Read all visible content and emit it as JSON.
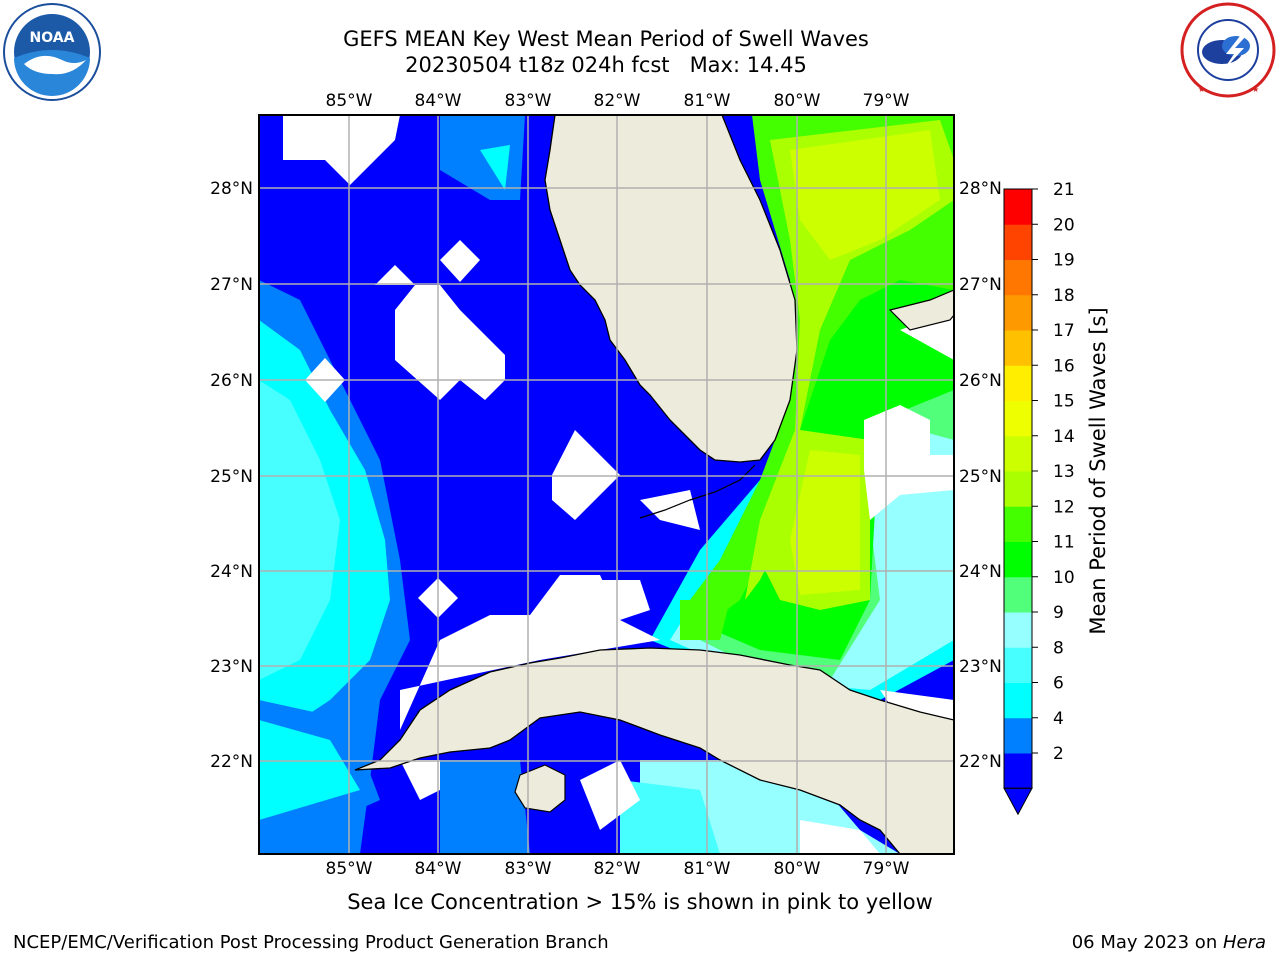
{
  "title_line1": "GEFS MEAN Key West Mean Period of Swell Waves",
  "title_line2": "20230504 t18z 024h fcst   Max: 14.45",
  "logos": {
    "left": "noaa-logo",
    "right": "national-weather-service-logo"
  },
  "map": {
    "lon_labels": [
      "85°W",
      "84°W",
      "83°W",
      "82°W",
      "81°W",
      "80°W",
      "79°W"
    ],
    "lat_labels": [
      "28°N",
      "27°N",
      "26°N",
      "25°N",
      "24°N",
      "23°N",
      "22°N"
    ],
    "land_color": "#ecebdc",
    "missing_color": "#ffffff"
  },
  "colorbar": {
    "label": "Mean Period of Swell Waves [s]",
    "ticks": [
      "21",
      "20",
      "19",
      "18",
      "17",
      "16",
      "15",
      "14",
      "13",
      "12",
      "11",
      "10",
      "9",
      "8",
      "6",
      "4",
      "2"
    ],
    "colors": [
      "#0000ff",
      "#0080ff",
      "#00ffff",
      "#48ffff",
      "#96ffff",
      "#52ff7a",
      "#00ff00",
      "#44ff00",
      "#aaff00",
      "#ccff00",
      "#eeff00",
      "#ffee00",
      "#ffc000",
      "#ff9900",
      "#ff7700",
      "#ff4400",
      "#ff0000"
    ],
    "under_color": "#0000ff"
  },
  "caption": "Sea Ice Concentration > 15% is shown in pink to yellow",
  "footer": {
    "left": "NCEP/EMC/Verification Post Processing Product Generation Branch",
    "right_date": "06 May 2023 on ",
    "right_host": "Hera"
  }
}
